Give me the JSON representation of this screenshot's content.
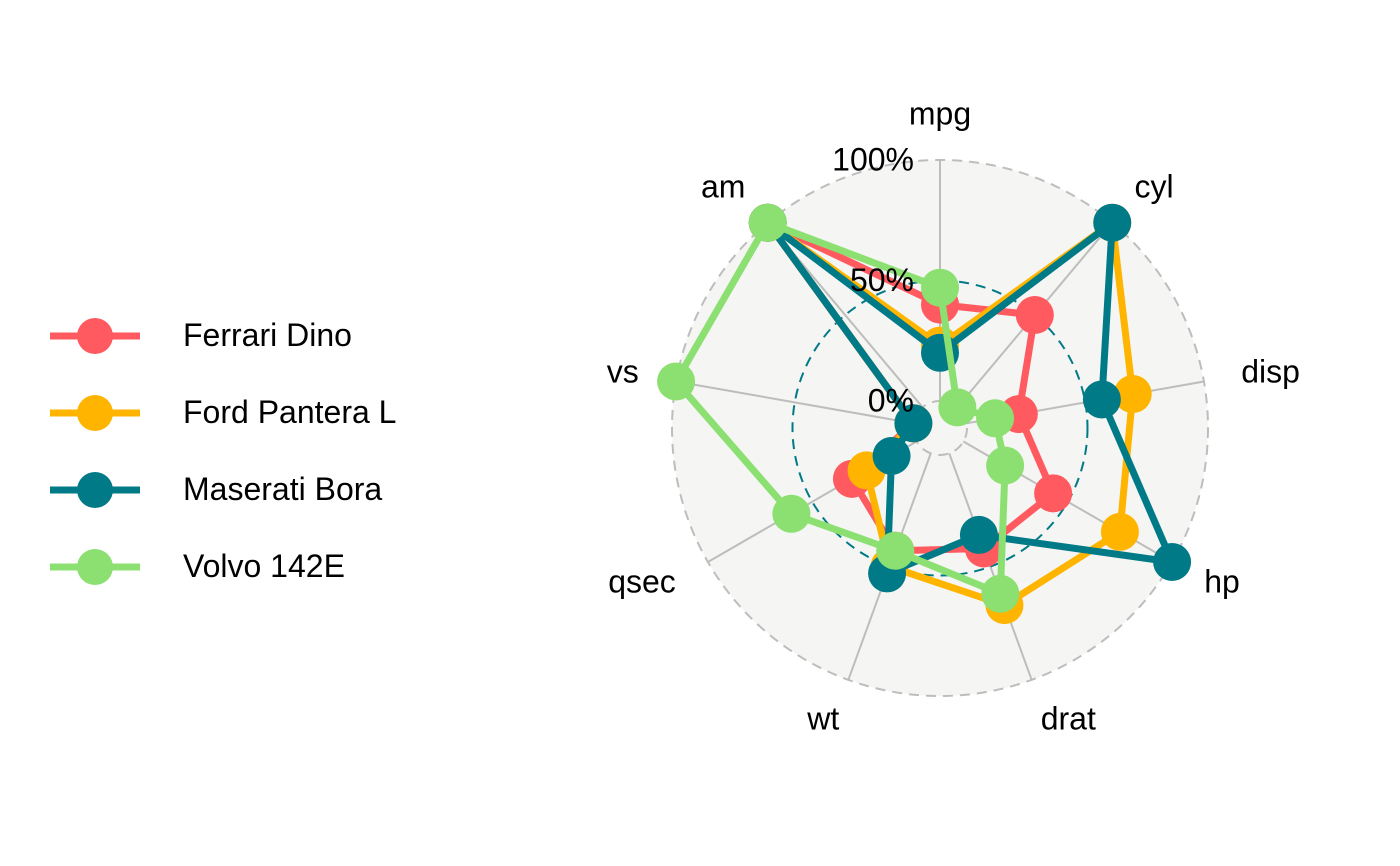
{
  "chart_data": {
    "type": "radar",
    "axes": [
      "mpg",
      "cyl",
      "disp",
      "hp",
      "drat",
      "wt",
      "qsec",
      "vs",
      "am"
    ],
    "grid_labels": [
      "0%",
      "50%",
      "100%"
    ],
    "grid_values": [
      0,
      0.5,
      1
    ],
    "series": [
      {
        "name": "Ferrari Dino",
        "color": "#FF5A5F",
        "values": [
          0.4,
          0.5,
          0.22,
          0.43,
          0.42,
          0.43,
          0.31,
          0.0,
          1.0
        ]
      },
      {
        "name": "Ford Pantera L",
        "color": "#FFB400",
        "values": [
          0.23,
          1.0,
          0.7,
          0.75,
          0.67,
          0.5,
          0.24,
          0.0,
          1.0
        ]
      },
      {
        "name": "Maserati Bora",
        "color": "#007A87",
        "values": [
          0.2,
          1.0,
          0.57,
          1.0,
          0.36,
          0.53,
          0.12,
          0.0,
          1.0
        ]
      },
      {
        "name": "Volvo 142E",
        "color": "#8CE071",
        "values": [
          0.47,
          0.0,
          0.12,
          0.2,
          0.62,
          0.43,
          0.6,
          1.0,
          1.0
        ]
      }
    ]
  }
}
